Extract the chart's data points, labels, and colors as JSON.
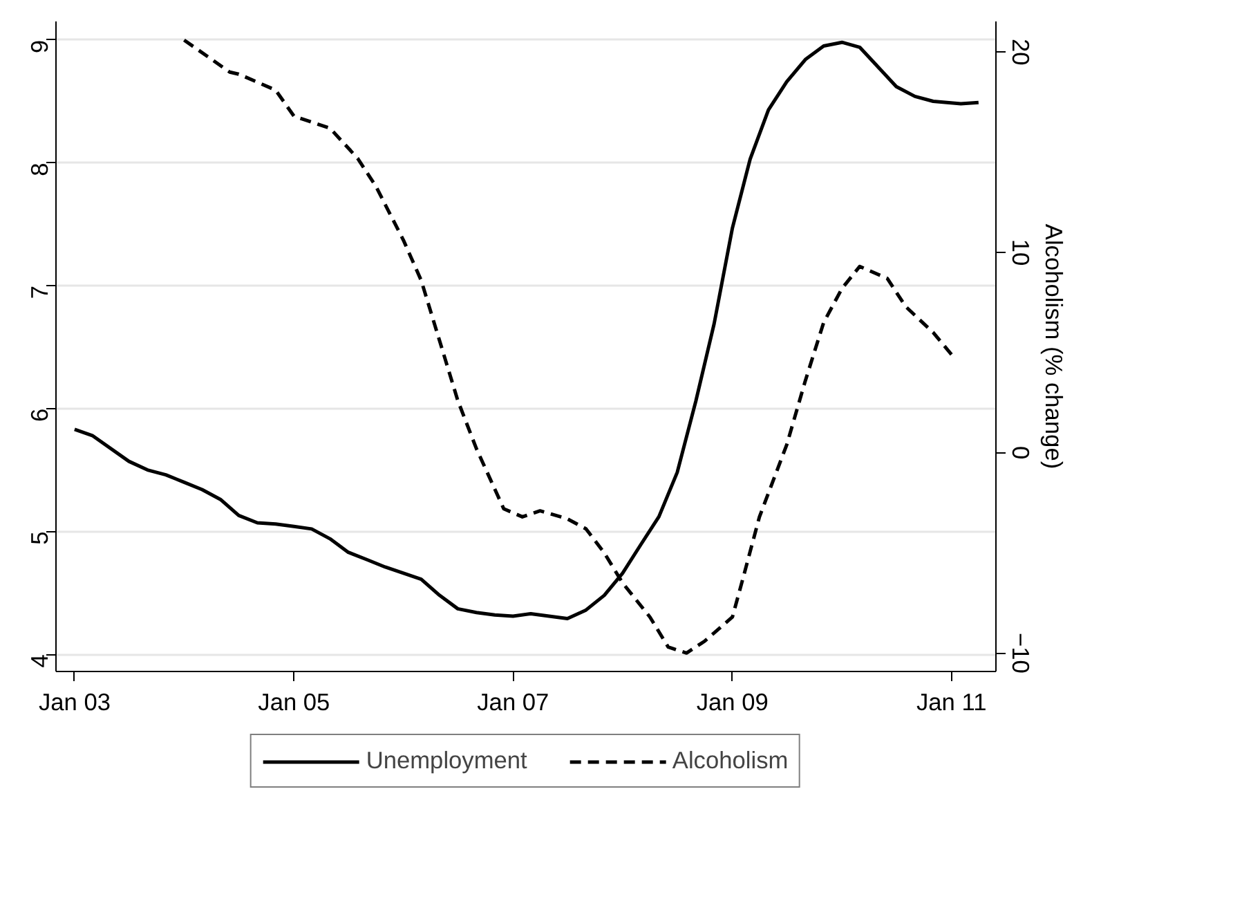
{
  "chart_data": {
    "type": "line",
    "y2label": "Alcoholism (% change)",
    "xlim": [
      "2002-10-31",
      "2011-05-29"
    ],
    "xticks": [
      {
        "value": "2003-01",
        "label": "Jan 03"
      },
      {
        "value": "2005-01",
        "label": "Jan 05"
      },
      {
        "value": "2007-01",
        "label": "Jan 07"
      },
      {
        "value": "2009-01",
        "label": "Jan 09"
      },
      {
        "value": "2011-01",
        "label": "Jan 11"
      }
    ],
    "ylim": [
      3.86,
      9.15
    ],
    "yticks": [
      4,
      5,
      6,
      7,
      8,
      9
    ],
    "y2lim": [
      -10.92,
      21.53
    ],
    "y2ticks": [
      -10,
      0,
      10,
      20
    ],
    "grid": "y",
    "legend": "bottom",
    "series": [
      {
        "name": "Unemployment",
        "color": "#000000",
        "line_style": "solid",
        "x": [
          "2003-01",
          "2003-03",
          "2003-07",
          "2003-09",
          "2003-11",
          "2004-01",
          "2004-03",
          "2004-05",
          "2004-07",
          "2004-09",
          "2004-11",
          "2005-01",
          "2005-03",
          "2005-05",
          "2005-07",
          "2005-09",
          "2005-11",
          "2006-01",
          "2006-03",
          "2006-05",
          "2006-07",
          "2006-09",
          "2006-11",
          "2007-01",
          "2007-03",
          "2007-07",
          "2007-09",
          "2007-11",
          "2008-01",
          "2008-03",
          "2008-05",
          "2008-07",
          "2008-09",
          "2008-11",
          "2009-01",
          "2009-03",
          "2009-05",
          "2009-07",
          "2009-09",
          "2009-11",
          "2010-01",
          "2010-03",
          "2010-05",
          "2010-07",
          "2010-09",
          "2010-11",
          "2011-02",
          "2011-04"
        ],
        "values": [
          5.83,
          5.78,
          5.57,
          5.5,
          5.46,
          5.4,
          5.34,
          5.26,
          5.13,
          5.07,
          5.06,
          5.04,
          5.02,
          4.94,
          4.83,
          4.77,
          4.71,
          4.66,
          4.61,
          4.48,
          4.37,
          4.34,
          4.32,
          4.31,
          4.33,
          4.29,
          4.36,
          4.48,
          4.66,
          4.89,
          5.12,
          5.48,
          6.06,
          6.69,
          7.47,
          8.03,
          8.43,
          8.66,
          8.84,
          8.95,
          8.98,
          8.94,
          8.78,
          8.62,
          8.54,
          8.5,
          8.48,
          8.49
        ]
      },
      {
        "name": "Alcoholism",
        "color": "#000000",
        "line_style": "dashed",
        "axis": "y2",
        "x": [
          "2004-01",
          "2004-06",
          "2004-07",
          "2004-09",
          "2004-11",
          "2005-01",
          "2005-05",
          "2005-08",
          "2005-10",
          "2006-01",
          "2006-03",
          "2006-05",
          "2006-07",
          "2006-09",
          "2006-12",
          "2007-02",
          "2007-04",
          "2007-07",
          "2007-09",
          "2007-11",
          "2008-01",
          "2008-04",
          "2008-06",
          "2008-08",
          "2008-10",
          "2009-01",
          "2009-02",
          "2009-04",
          "2009-07",
          "2009-09",
          "2009-11",
          "2010-01",
          "2010-03",
          "2010-06",
          "2010-08",
          "2010-11",
          "2011-01"
        ],
        "values": [
          20.6,
          19.0,
          18.9,
          18.5,
          18.1,
          16.8,
          16.2,
          14.7,
          13.3,
          10.6,
          8.6,
          5.6,
          2.6,
          0.2,
          -2.8,
          -3.2,
          -2.9,
          -3.3,
          -3.8,
          -5.0,
          -6.5,
          -8.2,
          -9.7,
          -10.0,
          -9.4,
          -8.2,
          -6.5,
          -3.2,
          0.4,
          3.6,
          6.5,
          8.2,
          9.3,
          8.7,
          7.3,
          6.0,
          4.9
        ]
      }
    ]
  }
}
